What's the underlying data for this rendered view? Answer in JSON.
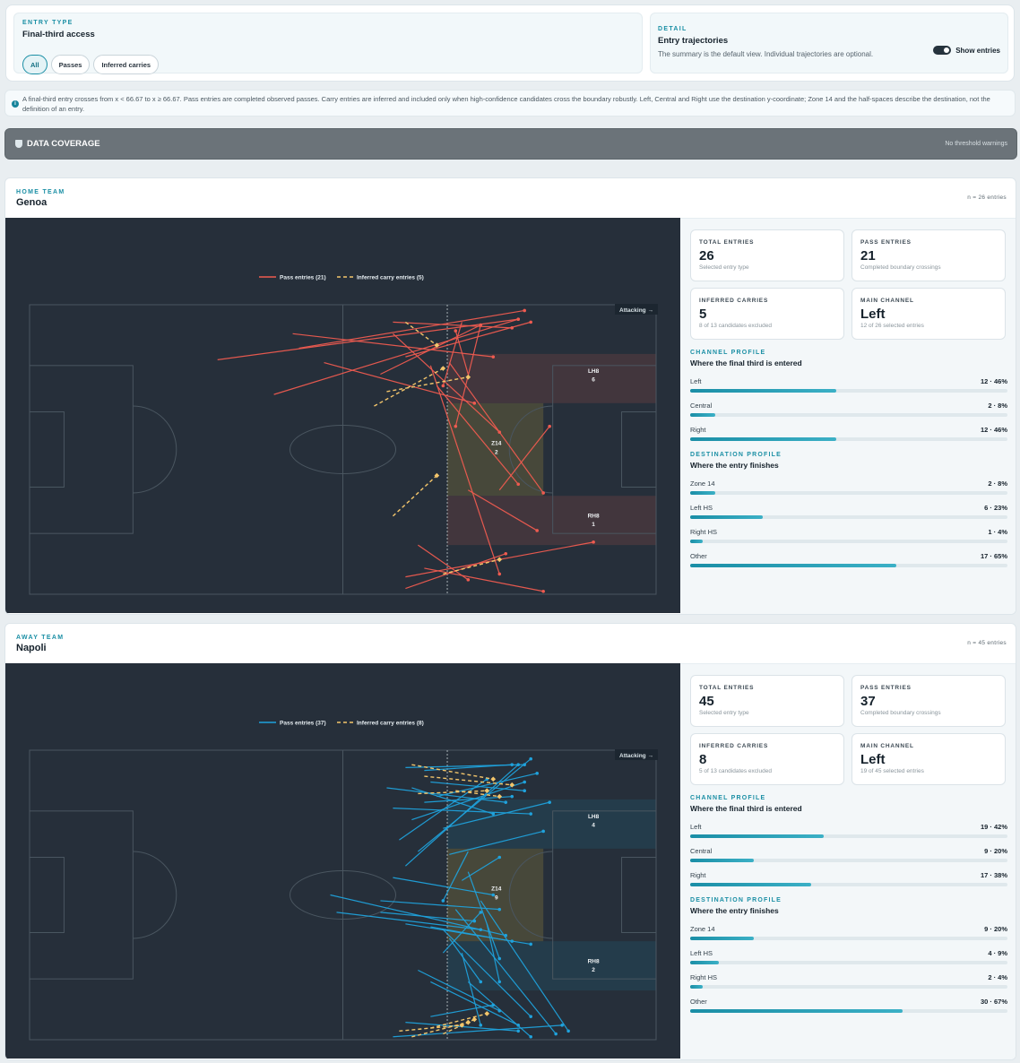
{
  "controls": {
    "entry_type_label": "ENTRY TYPE",
    "entry_type_value": "Final-third access",
    "pills": [
      "All",
      "Passes",
      "Inferred carries"
    ],
    "detail_label": "DETAIL",
    "detail_title": "Entry trajectories",
    "detail_sub": "The summary is the default view. Individual trajectories are optional.",
    "toggle_label": "Show entries"
  },
  "info_text": "A final-third entry crosses from x < 66.67 to x ≥ 66.67. Pass entries are completed observed passes. Carry entries are inferred and included only when high-confidence candidates cross the boundary robustly. Left, Central and Right use the destination y-coordinate; Zone 14 and the half-spaces describe the destination, not the definition of an entry.",
  "coverage": {
    "title": "DATA COVERAGE",
    "status": "No threshold warnings"
  },
  "colors": {
    "home_pass": "#ef5b50",
    "away_pass": "#1fa2dc",
    "carry": "#f3c56b",
    "accent": "#1b8fa5"
  },
  "teams": [
    {
      "eyebrow": "HOME TEAM",
      "name": "Genoa",
      "n_label": "n = 26 entries",
      "legend_pass": "Pass entries (21)",
      "legend_carry": "Inferred carry entries (5)",
      "attacking_label": "Attacking →",
      "zones": {
        "lh8": "LH8",
        "lh8_count": "6",
        "z14": "Z14",
        "z14_count": "2",
        "rh8": "RH8",
        "rh8_count": "1"
      },
      "cards": [
        {
          "label": "TOTAL ENTRIES",
          "value": "26",
          "sub": "Selected entry type"
        },
        {
          "label": "PASS ENTRIES",
          "value": "21",
          "sub": "Completed boundary crossings"
        },
        {
          "label": "INFERRED CARRIES",
          "value": "5",
          "sub": "8 of 13 candidates excluded"
        },
        {
          "label": "MAIN CHANNEL",
          "value": "Left",
          "sub": "12 of 26 selected entries"
        }
      ],
      "channel_eyebrow": "CHANNEL PROFILE",
      "channel_title": "Where the final third is entered",
      "channel": [
        {
          "label": "Left",
          "value": "12 · 46%",
          "pct": 46
        },
        {
          "label": "Central",
          "value": "2 · 8%",
          "pct": 8
        },
        {
          "label": "Right",
          "value": "12 · 46%",
          "pct": 46
        }
      ],
      "dest_eyebrow": "DESTINATION PROFILE",
      "dest_title": "Where the entry finishes",
      "destination": [
        {
          "label": "Zone 14",
          "value": "2 · 8%",
          "pct": 8
        },
        {
          "label": "Left HS",
          "value": "6 · 23%",
          "pct": 23
        },
        {
          "label": "Right HS",
          "value": "1 · 4%",
          "pct": 4
        },
        {
          "label": "Other",
          "value": "17 · 65%",
          "pct": 65
        }
      ],
      "passes": [
        [
          30,
          19,
          78,
          5
        ],
        [
          39,
          31,
          78,
          5
        ],
        [
          43,
          15,
          79,
          2
        ],
        [
          42,
          10,
          74,
          18
        ],
        [
          58,
          6,
          77,
          8
        ],
        [
          58,
          10,
          75,
          44
        ],
        [
          56,
          24,
          72,
          7
        ],
        [
          60,
          18,
          80,
          6
        ],
        [
          47,
          20,
          71,
          34
        ],
        [
          70,
          24,
          68,
          9
        ],
        [
          69,
          6,
          66,
          28
        ],
        [
          65,
          28,
          78,
          62
        ],
        [
          67,
          20,
          82,
          65
        ],
        [
          64,
          21,
          75,
          93
        ],
        [
          75,
          64,
          83,
          42
        ],
        [
          72,
          7,
          68,
          42
        ],
        [
          70,
          64,
          81,
          78
        ],
        [
          60,
          94,
          90,
          82
        ],
        [
          60,
          98,
          76,
          86
        ],
        [
          63,
          91,
          82,
          99
        ],
        [
          62,
          83,
          70,
          95
        ]
      ],
      "carries": [
        [
          60,
          6,
          65,
          14
        ],
        [
          55,
          35,
          66,
          22
        ],
        [
          57,
          30,
          70,
          25
        ],
        [
          58,
          73,
          65,
          59
        ],
        [
          66,
          93,
          75,
          88
        ]
      ]
    },
    {
      "eyebrow": "AWAY TEAM",
      "name": "Napoli",
      "n_label": "n = 45 entries",
      "legend_pass": "Pass entries (37)",
      "legend_carry": "Inferred carry entries (8)",
      "attacking_label": "Attacking →",
      "zones": {
        "lh8": "LH8",
        "lh8_count": "4",
        "z14": "Z14",
        "z14_count": "9",
        "rh8": "RH8",
        "rh8_count": "2"
      },
      "cards": [
        {
          "label": "TOTAL ENTRIES",
          "value": "45",
          "sub": "Selected entry type"
        },
        {
          "label": "PASS ENTRIES",
          "value": "37",
          "sub": "Completed boundary crossings"
        },
        {
          "label": "INFERRED CARRIES",
          "value": "8",
          "sub": "5 of 13 candidates excluded"
        },
        {
          "label": "MAIN CHANNEL",
          "value": "Left",
          "sub": "19 of 45 selected entries"
        }
      ],
      "channel_eyebrow": "CHANNEL PROFILE",
      "channel_title": "Where the final third is entered",
      "channel": [
        {
          "label": "Left",
          "value": "19 · 42%",
          "pct": 42
        },
        {
          "label": "Central",
          "value": "9 · 20%",
          "pct": 20
        },
        {
          "label": "Right",
          "value": "17 · 38%",
          "pct": 38
        }
      ],
      "dest_eyebrow": "DESTINATION PROFILE",
      "dest_title": "Where the entry finishes",
      "destination": [
        {
          "label": "Zone 14",
          "value": "9 · 20%",
          "pct": 20
        },
        {
          "label": "Left HS",
          "value": "4 · 9%",
          "pct": 9
        },
        {
          "label": "Right HS",
          "value": "2 · 4%",
          "pct": 4
        },
        {
          "label": "Other",
          "value": "30 · 67%",
          "pct": 67
        }
      ],
      "passes": [
        [
          60,
          40,
          78,
          5
        ],
        [
          62,
          35,
          80,
          3
        ],
        [
          59,
          31,
          73,
          10
        ],
        [
          61,
          24,
          79,
          11
        ],
        [
          63,
          18,
          77,
          16
        ],
        [
          61,
          13,
          74,
          22
        ],
        [
          65,
          16,
          81,
          8
        ],
        [
          64,
          11,
          79,
          14
        ],
        [
          60,
          6,
          79,
          5
        ],
        [
          63,
          7,
          77,
          5
        ],
        [
          57,
          13,
          76,
          18
        ],
        [
          58,
          20,
          80,
          22
        ],
        [
          66,
          27,
          83,
          18
        ],
        [
          67,
          36,
          82,
          28
        ],
        [
          69,
          45,
          75,
          37
        ],
        [
          58,
          44,
          74,
          50
        ],
        [
          56,
          52,
          75,
          55
        ],
        [
          48,
          50,
          76,
          64
        ],
        [
          49,
          56,
          72,
          62
        ],
        [
          60,
          60,
          80,
          67
        ],
        [
          64,
          61,
          77,
          66
        ],
        [
          70,
          42,
          75,
          72
        ],
        [
          66,
          70,
          72,
          56
        ],
        [
          72,
          52,
          86,
          97
        ],
        [
          68,
          55,
          84,
          98
        ],
        [
          66,
          62,
          80,
          92
        ],
        [
          67,
          65,
          72,
          80
        ],
        [
          62,
          76,
          75,
          90
        ],
        [
          64,
          80,
          78,
          95
        ],
        [
          70,
          80,
          80,
          99
        ],
        [
          60,
          94,
          78,
          97
        ],
        [
          58,
          99,
          85,
          95
        ],
        [
          64,
          92,
          74,
          88
        ],
        [
          69,
          70,
          72,
          95
        ],
        [
          70,
          35,
          66,
          52
        ],
        [
          56,
          56,
          71,
          59
        ],
        [
          73,
          60,
          75,
          80
        ]
      ],
      "carries": [
        [
          61,
          5,
          74,
          10
        ],
        [
          63,
          9,
          77,
          12
        ],
        [
          62,
          15,
          73,
          14
        ],
        [
          68,
          14,
          75,
          16
        ],
        [
          59,
          97,
          69,
          95
        ],
        [
          61,
          99,
          70,
          94
        ],
        [
          64,
          96,
          73,
          91
        ],
        [
          66,
          98,
          71,
          93
        ]
      ]
    }
  ]
}
